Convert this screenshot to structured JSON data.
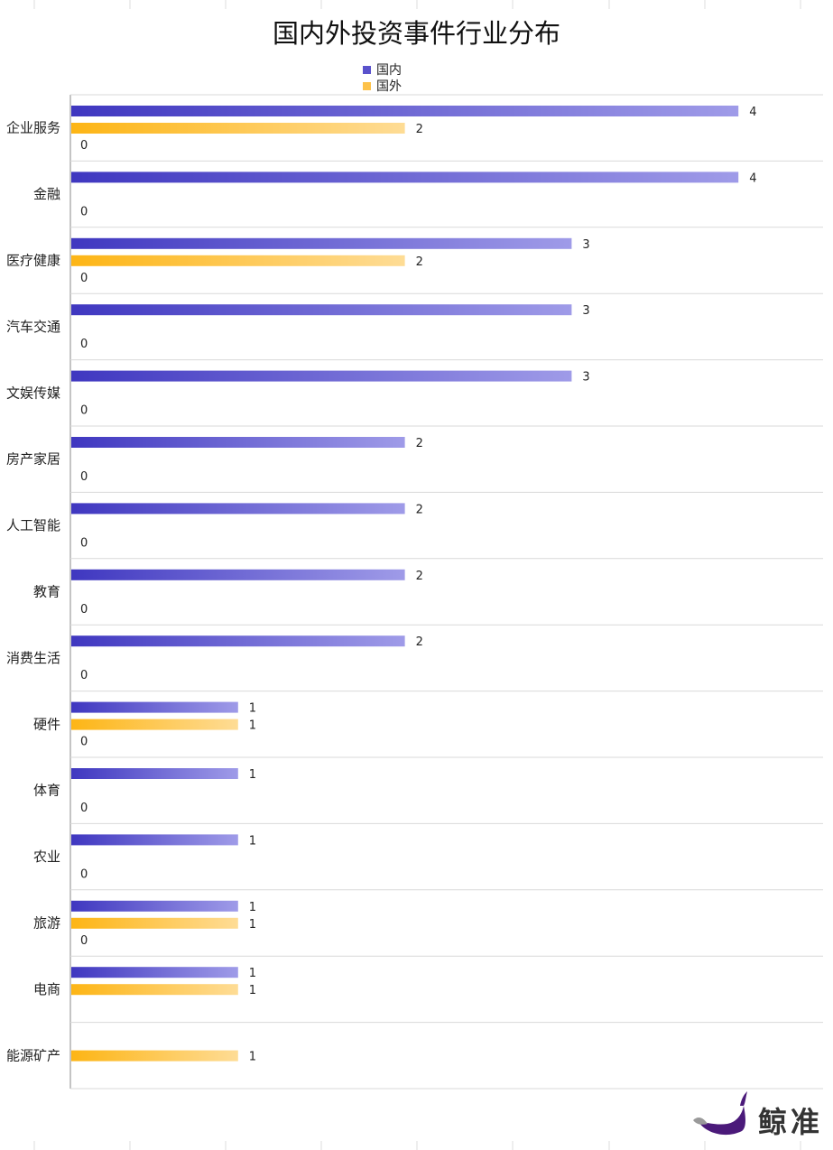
{
  "chart_data": {
    "type": "bar",
    "orientation": "horizontal",
    "title": "国内外投资事件行业分布",
    "categories": [
      "企业服务",
      "金融",
      "医疗健康",
      "汽车交通",
      "文娱传媒",
      "房产家居",
      "人工智能",
      "教育",
      "消费生活",
      "硬件",
      "体育",
      "农业",
      "旅游",
      "电商",
      "能源矿产"
    ],
    "series": [
      {
        "name": "国内",
        "color": "#4a40c4",
        "values": [
          4,
          4,
          3,
          3,
          3,
          2,
          2,
          2,
          2,
          1,
          1,
          1,
          1,
          1,
          null
        ]
      },
      {
        "name": "国外",
        "color": "#fdb823",
        "values": [
          2,
          null,
          2,
          null,
          null,
          null,
          null,
          null,
          null,
          1,
          null,
          null,
          1,
          1,
          1
        ]
      },
      {
        "name": "",
        "color": "#cccccc",
        "values": [
          0,
          0,
          0,
          0,
          0,
          0,
          0,
          0,
          0,
          0,
          0,
          0,
          0,
          null,
          null
        ]
      }
    ],
    "xlim": [
      0,
      4.5
    ],
    "legend_position": "top-center",
    "grid": "horizontal separators between categories"
  },
  "watermark": {
    "text": "鲸准"
  }
}
